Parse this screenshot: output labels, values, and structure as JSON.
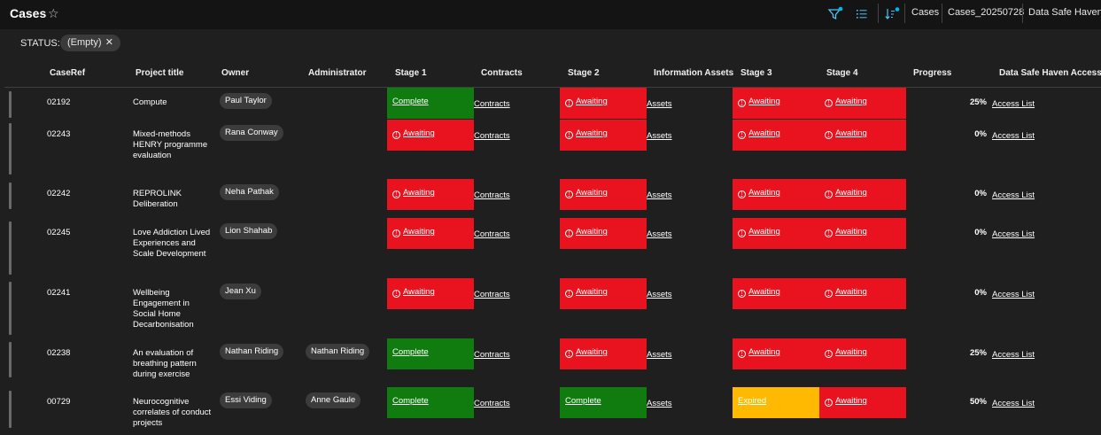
{
  "header": {
    "title": "Cases",
    "star_icon": "☆",
    "breadcrumbs": [
      "Cases",
      "Cases_20250728",
      "Data Safe Haven"
    ]
  },
  "filter": {
    "label": "STATUS:",
    "pill": "(Empty)",
    "remove": "✕"
  },
  "columns": [
    "CaseRef",
    "Project title",
    "Owner",
    "Administrator",
    "Stage 1",
    "Contracts",
    "Stage 2",
    "Information Assets",
    "Stage 3",
    "Stage 4",
    "Progress",
    "Data Safe Haven Access"
  ],
  "colors": {
    "awaiting": "#e8131f",
    "complete": "#107c10",
    "expired": "#ffb900",
    "accent": "#00b7f0"
  },
  "rows": [
    {
      "ref": "02192",
      "title": "Compute",
      "owner": "Paul Taylor",
      "admin": "",
      "stage1": {
        "status": "complete",
        "label": "Complete"
      },
      "contracts": "Contracts",
      "stage2": {
        "status": "awaiting",
        "label": "Awaiting"
      },
      "assets": "Assets",
      "stage3": {
        "status": "awaiting",
        "label": "Awaiting"
      },
      "stage4": {
        "status": "awaiting",
        "label": "Awaiting"
      },
      "progress": "25%",
      "access": "Access List"
    },
    {
      "ref": "02243",
      "title": "Mixed-methods HENRY programme evaluation",
      "owner": "Rana Conway",
      "admin": "",
      "stage1": {
        "status": "awaiting",
        "label": "Awaiting"
      },
      "contracts": "Contracts",
      "stage2": {
        "status": "awaiting",
        "label": "Awaiting"
      },
      "assets": "Assets",
      "stage3": {
        "status": "awaiting",
        "label": "Awaiting"
      },
      "stage4": {
        "status": "awaiting",
        "label": "Awaiting"
      },
      "progress": "0%",
      "access": "Access List"
    },
    {
      "ref": "02242",
      "title": "REPROLINK Deliberation",
      "owner": "Neha Pathak",
      "admin": "",
      "stage1": {
        "status": "awaiting",
        "label": "Awaiting"
      },
      "contracts": "Contracts",
      "stage2": {
        "status": "awaiting",
        "label": "Awaiting"
      },
      "assets": "Assets",
      "stage3": {
        "status": "awaiting",
        "label": "Awaiting"
      },
      "stage4": {
        "status": "awaiting",
        "label": "Awaiting"
      },
      "progress": "0%",
      "access": "Access List"
    },
    {
      "ref": "02245",
      "title": "Love Addiction Lived Experiences and Scale Development",
      "owner": "Lion Shahab",
      "admin": "",
      "stage1": {
        "status": "awaiting",
        "label": "Awaiting"
      },
      "contracts": "Contracts",
      "stage2": {
        "status": "awaiting",
        "label": "Awaiting"
      },
      "assets": "Assets",
      "stage3": {
        "status": "awaiting",
        "label": "Awaiting"
      },
      "stage4": {
        "status": "awaiting",
        "label": "Awaiting"
      },
      "progress": "0%",
      "access": "Access List"
    },
    {
      "ref": "02241",
      "title": "Wellbeing Engagement in Social Home Decarbonisation",
      "owner": "Jean Xu",
      "admin": "",
      "stage1": {
        "status": "awaiting",
        "label": "Awaiting"
      },
      "contracts": "Contracts",
      "stage2": {
        "status": "awaiting",
        "label": "Awaiting"
      },
      "assets": "Assets",
      "stage3": {
        "status": "awaiting",
        "label": "Awaiting"
      },
      "stage4": {
        "status": "awaiting",
        "label": "Awaiting"
      },
      "progress": "0%",
      "access": "Access List"
    },
    {
      "ref": "02238",
      "title": "An evaluation of breathing pattern during exercise",
      "owner": "Nathan Riding",
      "admin": "Nathan Riding",
      "stage1": {
        "status": "complete",
        "label": "Complete"
      },
      "contracts": "Contracts",
      "stage2": {
        "status": "awaiting",
        "label": "Awaiting"
      },
      "assets": "Assets",
      "stage3": {
        "status": "awaiting",
        "label": "Awaiting"
      },
      "stage4": {
        "status": "awaiting",
        "label": "Awaiting"
      },
      "progress": "25%",
      "access": "Access List"
    },
    {
      "ref": "00729",
      "title": "Neurocognitive correlates of conduct projects",
      "owner": "Essi Viding",
      "admin": "Anne Gaule",
      "stage1": {
        "status": "complete",
        "label": "Complete"
      },
      "contracts": "Contracts",
      "stage2": {
        "status": "complete",
        "label": "Complete"
      },
      "assets": "Assets",
      "stage3": {
        "status": "expired",
        "label": "Expired"
      },
      "stage4": {
        "status": "awaiting",
        "label": "Awaiting"
      },
      "progress": "50%",
      "access": "Access List"
    }
  ]
}
